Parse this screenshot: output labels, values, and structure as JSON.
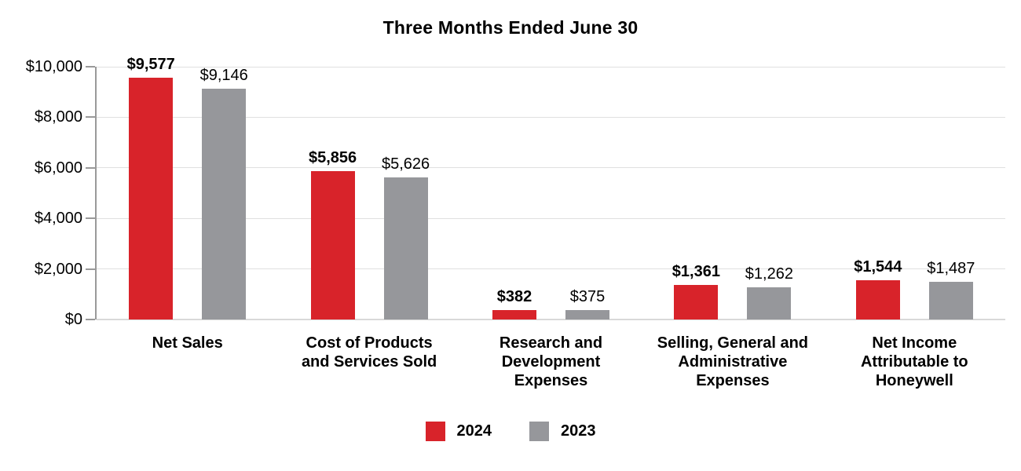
{
  "chart_data": {
    "type": "bar",
    "title": "Three Months Ended June 30",
    "categories": [
      "Net Sales",
      "Cost of Products and Services Sold",
      "Research and Development Expenses",
      "Selling, General and Administrative Expenses",
      "Net Income Attributable to Honeywell"
    ],
    "category_lines": [
      [
        "Net Sales"
      ],
      [
        "Cost of Products",
        "and Services Sold"
      ],
      [
        "Research and",
        "Development",
        "Expenses"
      ],
      [
        "Selling, General and",
        "Administrative",
        "Expenses"
      ],
      [
        "Net Income",
        "Attributable to",
        "Honeywell"
      ]
    ],
    "series": [
      {
        "name": "2024",
        "color": "#D8232A",
        "values": [
          9577,
          5856,
          382,
          1361,
          1544
        ],
        "data_labels": [
          "$9,577",
          "$5,856",
          "$382",
          "$1,361",
          "$1,544"
        ],
        "bold_value_labels": true
      },
      {
        "name": "2023",
        "color": "#96979B",
        "values": [
          9146,
          5626,
          375,
          1262,
          1487
        ],
        "data_labels": [
          "$9,146",
          "$5,626",
          "$375",
          "$1,262",
          "$1,487"
        ],
        "bold_value_labels": false
      }
    ],
    "y_axis": {
      "min": 0,
      "max": 10000,
      "step": 2000,
      "tick_labels": [
        "$0",
        "$2,000",
        "$4,000",
        "$6,000",
        "$8,000",
        "$10,000"
      ]
    },
    "ylim": [
      0,
      10000
    ],
    "grid": "horizontal",
    "legend_position": "bottom",
    "legend_entries": [
      "2024",
      "2023"
    ]
  },
  "colors": {
    "series_2024": "#D8232A",
    "series_2023": "#96979B",
    "gridline": "#E0E0E0",
    "axis": "#9A9A9A",
    "baseline": "#D9D9D9",
    "text": "#000000",
    "background": "#FFFFFF"
  }
}
